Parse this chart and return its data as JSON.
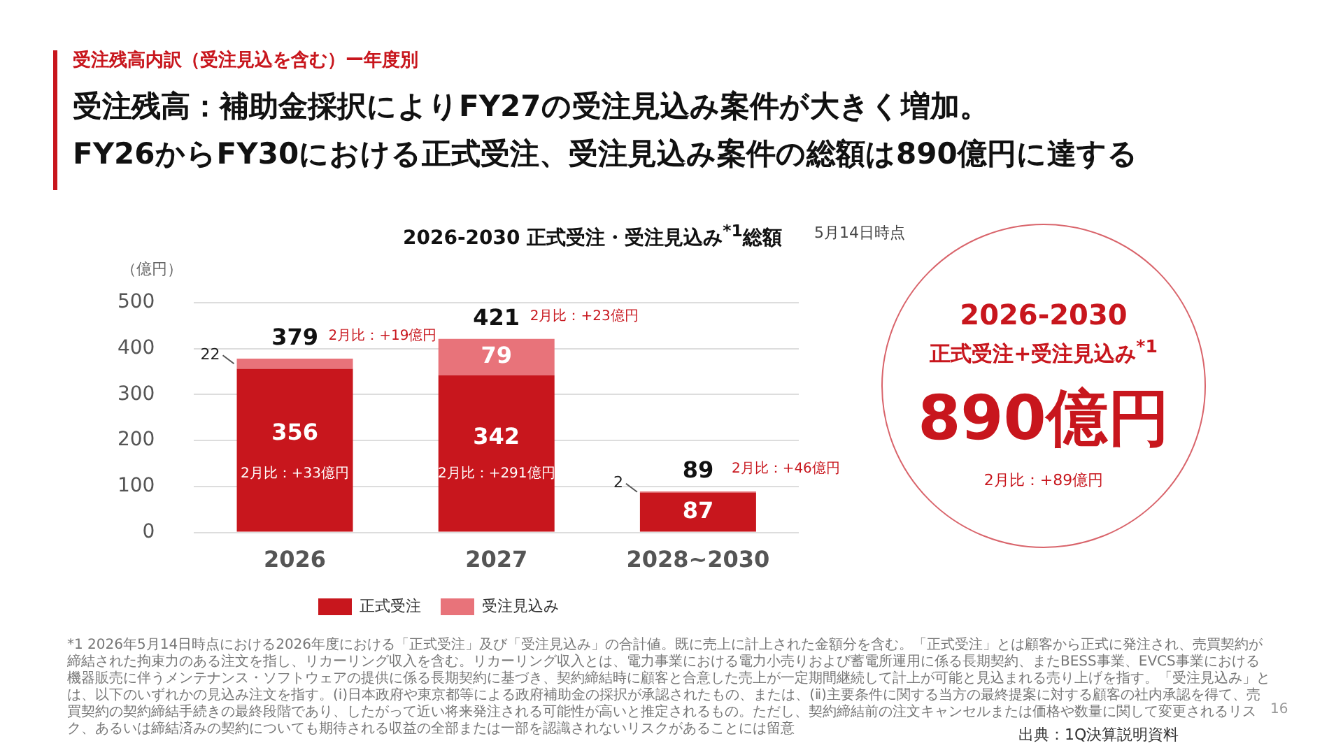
{
  "chart_data": {
    "type": "bar",
    "stacked": true,
    "title": "2026-2030 正式受注・受注見込み$^{*1}$総額",
    "subtitle": "5月14日時点",
    "ylabel": "（億円）",
    "categories": [
      "2026",
      "2027",
      "2028~2030"
    ],
    "series": [
      {
        "name": "正式受注",
        "color": "#c8161d",
        "values": [
          356,
          342,
          87
        ]
      },
      {
        "name": "受注見込み",
        "color": "#e8737a",
        "values": [
          22,
          79,
          2
        ]
      }
    ],
    "ylim": [
      0,
      500
    ],
    "yticks": [
      0,
      100,
      200,
      300,
      400,
      500
    ],
    "grid": "y",
    "legend": "bottom",
    "data_labels": true,
    "totals": [
      "379",
      "421",
      "89"
    ],
    "annotations": [
      "受注残高内訳（受注見込を含む）ー年度別",
      "受注残高：補助金採択によりFY27の受注見込み案件が大きく増加。",
      "FY26からFY30における正式受注、受注見込み案件の総額は890億円に達する",
      "2026-2030",
      "正式受注+受注見込み$^{*1}$",
      "890億円",
      "2月比：+89億円",
      "*1 2026年5月14日時点における2026年度における「正式受注」及び「受注見込み」の合計値。既に売上に計上された金額分を含む。「正式受注」とは顧客から正式に発注され、売買契約が締結された拘束力のある注文を指し、リカーリング収入を含む。リカーリング収入とは、電力事業における電力小売りおよび蓄電所運用に係る長期契約、またBESS事業、EVCS事業における機器販売に伴うメンテナンス・ソフトウェアの提供に係る長期契約に基づき、契約締結時に顧客と合意した売上が一定期間継続して計上が可能と見込まれる売り上げを指す。「受注見込み」とは、以下のいずれかの見込み注文を指す。(ⅰ)日本政府や東京都等による政府補助金の採択が承認されたもの、または、(ⅱ)主要条件に関する当方の最終提案に対する顧客の社内承認を得て、売買契約の契約締結手続きの最終段階であり、したがって近い将来発注される可能性が高いと推定されるもの。ただし、契約締結前の注文キャンセルまたは価格や数量に関して変更されるリスク、あるいは締結済みの契約についても期待される収益の全部または一部を認識されないリスクがあることには留意",
      "16",
      "出典：1Q決算説明資料",
      "2月比：+33億円",
      "2月比：+291億円",
      {
        "text": "2月比：+19億円",
        "x": "2026",
        "y": 379
      },
      {
        "text": "2月比：+23億円",
        "x": "2027",
        "y": 421
      },
      {
        "text": "2月比：+46億円",
        "x": "2028~2030",
        "y": 89
      }
    ]
  }
}
